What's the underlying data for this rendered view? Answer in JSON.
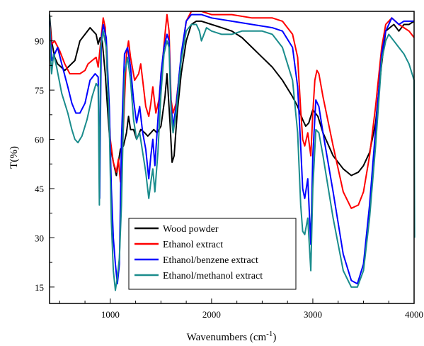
{
  "chart_data": {
    "type": "line",
    "title": "",
    "xlabel": "Wavenumbers (cm",
    "xlabel_sup": "-1",
    "xlabel_close": ")",
    "ylabel": "T(%)",
    "xlim": [
      400,
      4000
    ],
    "ylim": [
      10,
      99
    ],
    "x_ticks": [
      1000,
      2000,
      3000,
      4000
    ],
    "y_ticks": [
      15,
      30,
      45,
      60,
      75,
      90
    ],
    "grid": false,
    "legend_position": "bottom-left",
    "series": [
      {
        "name": "Wood powder",
        "color": "#000000",
        "points": [
          [
            400,
            98
          ],
          [
            420,
            90
          ],
          [
            450,
            85
          ],
          [
            480,
            83
          ],
          [
            550,
            81
          ],
          [
            650,
            84
          ],
          [
            700,
            90
          ],
          [
            750,
            92
          ],
          [
            800,
            94
          ],
          [
            830,
            93
          ],
          [
            860,
            92
          ],
          [
            880,
            89
          ],
          [
            900,
            91
          ],
          [
            920,
            90
          ],
          [
            950,
            80
          ],
          [
            980,
            66
          ],
          [
            1000,
            58
          ],
          [
            1030,
            53
          ],
          [
            1060,
            49
          ],
          [
            1100,
            57
          ],
          [
            1130,
            58
          ],
          [
            1160,
            62
          ],
          [
            1180,
            67
          ],
          [
            1200,
            63
          ],
          [
            1230,
            63
          ],
          [
            1260,
            60
          ],
          [
            1300,
            63
          ],
          [
            1340,
            62
          ],
          [
            1370,
            61
          ],
          [
            1400,
            62
          ],
          [
            1430,
            63
          ],
          [
            1460,
            62
          ],
          [
            1500,
            64
          ],
          [
            1540,
            73
          ],
          [
            1560,
            80
          ],
          [
            1590,
            65
          ],
          [
            1610,
            53
          ],
          [
            1630,
            55
          ],
          [
            1660,
            68
          ],
          [
            1700,
            80
          ],
          [
            1750,
            90
          ],
          [
            1800,
            95
          ],
          [
            1850,
            96
          ],
          [
            1900,
            96
          ],
          [
            2000,
            95
          ],
          [
            2100,
            94
          ],
          [
            2200,
            93
          ],
          [
            2300,
            91
          ],
          [
            2400,
            88
          ],
          [
            2500,
            85
          ],
          [
            2600,
            82
          ],
          [
            2700,
            78
          ],
          [
            2800,
            73
          ],
          [
            2850,
            70
          ],
          [
            2900,
            66
          ],
          [
            2930,
            64
          ],
          [
            2960,
            65
          ],
          [
            3000,
            69
          ],
          [
            3050,
            67
          ],
          [
            3100,
            62
          ],
          [
            3200,
            55
          ],
          [
            3300,
            51
          ],
          [
            3380,
            49
          ],
          [
            3450,
            50
          ],
          [
            3500,
            52
          ],
          [
            3560,
            56
          ],
          [
            3620,
            65
          ],
          [
            3680,
            83
          ],
          [
            3720,
            93
          ],
          [
            3760,
            94
          ],
          [
            3800,
            95
          ],
          [
            3850,
            93
          ],
          [
            3900,
            95
          ],
          [
            3950,
            95
          ],
          [
            4000,
            96
          ]
        ]
      },
      {
        "name": "Ethanol extract",
        "color": "#ff0000",
        "points": [
          [
            400,
            96
          ],
          [
            420,
            89
          ],
          [
            450,
            90
          ],
          [
            500,
            87
          ],
          [
            550,
            83
          ],
          [
            600,
            80
          ],
          [
            650,
            80
          ],
          [
            700,
            80
          ],
          [
            750,
            81
          ],
          [
            780,
            83
          ],
          [
            820,
            84
          ],
          [
            860,
            85
          ],
          [
            880,
            82
          ],
          [
            900,
            88
          ],
          [
            930,
            97
          ],
          [
            950,
            94
          ],
          [
            980,
            73
          ],
          [
            1000,
            60
          ],
          [
            1030,
            53
          ],
          [
            1060,
            50
          ],
          [
            1080,
            54
          ],
          [
            1100,
            47
          ],
          [
            1130,
            64
          ],
          [
            1160,
            86
          ],
          [
            1180,
            90
          ],
          [
            1200,
            85
          ],
          [
            1240,
            78
          ],
          [
            1280,
            80
          ],
          [
            1300,
            83
          ],
          [
            1320,
            78
          ],
          [
            1350,
            70
          ],
          [
            1380,
            67
          ],
          [
            1400,
            71
          ],
          [
            1420,
            76
          ],
          [
            1450,
            68
          ],
          [
            1480,
            72
          ],
          [
            1510,
            82
          ],
          [
            1540,
            92
          ],
          [
            1560,
            98
          ],
          [
            1580,
            93
          ],
          [
            1600,
            72
          ],
          [
            1620,
            68
          ],
          [
            1650,
            71
          ],
          [
            1700,
            85
          ],
          [
            1750,
            96
          ],
          [
            1800,
            99
          ],
          [
            1900,
            99
          ],
          [
            2000,
            98
          ],
          [
            2200,
            98
          ],
          [
            2400,
            97
          ],
          [
            2600,
            97
          ],
          [
            2700,
            96
          ],
          [
            2800,
            92
          ],
          [
            2850,
            85
          ],
          [
            2880,
            69
          ],
          [
            2900,
            60
          ],
          [
            2920,
            58
          ],
          [
            2950,
            62
          ],
          [
            2980,
            55
          ],
          [
            3000,
            68
          ],
          [
            3020,
            78
          ],
          [
            3040,
            81
          ],
          [
            3060,
            80
          ],
          [
            3100,
            73
          ],
          [
            3200,
            58
          ],
          [
            3300,
            44
          ],
          [
            3380,
            39
          ],
          [
            3450,
            40
          ],
          [
            3500,
            44
          ],
          [
            3560,
            55
          ],
          [
            3620,
            70
          ],
          [
            3680,
            88
          ],
          [
            3720,
            95
          ],
          [
            3780,
            97
          ],
          [
            3850,
            95
          ],
          [
            3900,
            94
          ],
          [
            3950,
            93
          ],
          [
            4000,
            91
          ]
        ]
      },
      {
        "name": "Ethanol/benzene extract",
        "color": "#0000ff",
        "points": [
          [
            400,
            96
          ],
          [
            420,
            84
          ],
          [
            450,
            86
          ],
          [
            480,
            88
          ],
          [
            520,
            83
          ],
          [
            580,
            76
          ],
          [
            620,
            71
          ],
          [
            660,
            68
          ],
          [
            700,
            68
          ],
          [
            750,
            71
          ],
          [
            800,
            78
          ],
          [
            850,
            80
          ],
          [
            880,
            79
          ],
          [
            895,
            42
          ],
          [
            910,
            90
          ],
          [
            930,
            95
          ],
          [
            960,
            91
          ],
          [
            990,
            70
          ],
          [
            1010,
            45
          ],
          [
            1030,
            30
          ],
          [
            1050,
            22
          ],
          [
            1070,
            16
          ],
          [
            1090,
            22
          ],
          [
            1110,
            60
          ],
          [
            1140,
            86
          ],
          [
            1170,
            88
          ],
          [
            1200,
            82
          ],
          [
            1230,
            72
          ],
          [
            1260,
            65
          ],
          [
            1290,
            70
          ],
          [
            1320,
            62
          ],
          [
            1350,
            57
          ],
          [
            1380,
            48
          ],
          [
            1400,
            55
          ],
          [
            1420,
            60
          ],
          [
            1440,
            52
          ],
          [
            1470,
            66
          ],
          [
            1500,
            80
          ],
          [
            1530,
            88
          ],
          [
            1560,
            92
          ],
          [
            1580,
            90
          ],
          [
            1600,
            70
          ],
          [
            1620,
            64
          ],
          [
            1650,
            70
          ],
          [
            1700,
            86
          ],
          [
            1750,
            96
          ],
          [
            1800,
            98
          ],
          [
            1900,
            98
          ],
          [
            2000,
            97
          ],
          [
            2200,
            96
          ],
          [
            2400,
            95
          ],
          [
            2600,
            94
          ],
          [
            2700,
            93
          ],
          [
            2800,
            88
          ],
          [
            2850,
            76
          ],
          [
            2880,
            58
          ],
          [
            2900,
            45
          ],
          [
            2920,
            42
          ],
          [
            2950,
            48
          ],
          [
            2980,
            28
          ],
          [
            3000,
            55
          ],
          [
            3030,
            72
          ],
          [
            3060,
            70
          ],
          [
            3100,
            62
          ],
          [
            3200,
            44
          ],
          [
            3300,
            25
          ],
          [
            3380,
            17
          ],
          [
            3440,
            16
          ],
          [
            3500,
            22
          ],
          [
            3560,
            40
          ],
          [
            3620,
            63
          ],
          [
            3680,
            86
          ],
          [
            3720,
            93
          ],
          [
            3780,
            97
          ],
          [
            3850,
            95
          ],
          [
            3900,
            96
          ],
          [
            3950,
            96
          ],
          [
            4000,
            96
          ]
        ]
      },
      {
        "name": "Ethanol/methanol extract",
        "color": "#1a8c8c",
        "points": [
          [
            400,
            98
          ],
          [
            410,
            85
          ],
          [
            420,
            80
          ],
          [
            440,
            86
          ],
          [
            470,
            82
          ],
          [
            520,
            74
          ],
          [
            580,
            68
          ],
          [
            620,
            63
          ],
          [
            650,
            60
          ],
          [
            680,
            59
          ],
          [
            720,
            61
          ],
          [
            770,
            66
          ],
          [
            820,
            73
          ],
          [
            860,
            77
          ],
          [
            880,
            76
          ],
          [
            892,
            40
          ],
          [
            905,
            88
          ],
          [
            930,
            93
          ],
          [
            960,
            88
          ],
          [
            990,
            64
          ],
          [
            1010,
            35
          ],
          [
            1030,
            20
          ],
          [
            1050,
            14
          ],
          [
            1070,
            18
          ],
          [
            1090,
            24
          ],
          [
            1110,
            40
          ],
          [
            1140,
            80
          ],
          [
            1170,
            85
          ],
          [
            1200,
            78
          ],
          [
            1230,
            66
          ],
          [
            1260,
            60
          ],
          [
            1290,
            62
          ],
          [
            1320,
            56
          ],
          [
            1350,
            50
          ],
          [
            1380,
            42
          ],
          [
            1400,
            47
          ],
          [
            1420,
            51
          ],
          [
            1440,
            44
          ],
          [
            1470,
            56
          ],
          [
            1500,
            74
          ],
          [
            1530,
            86
          ],
          [
            1560,
            90
          ],
          [
            1580,
            88
          ],
          [
            1600,
            68
          ],
          [
            1620,
            62
          ],
          [
            1650,
            68
          ],
          [
            1700,
            84
          ],
          [
            1750,
            93
          ],
          [
            1800,
            95
          ],
          [
            1850,
            95
          ],
          [
            1880,
            93
          ],
          [
            1900,
            90
          ],
          [
            1950,
            94
          ],
          [
            2000,
            93
          ],
          [
            2100,
            92
          ],
          [
            2200,
            92
          ],
          [
            2300,
            93
          ],
          [
            2400,
            93
          ],
          [
            2500,
            93
          ],
          [
            2600,
            92
          ],
          [
            2700,
            88
          ],
          [
            2800,
            78
          ],
          [
            2850,
            62
          ],
          [
            2880,
            40
          ],
          [
            2900,
            32
          ],
          [
            2920,
            31
          ],
          [
            2950,
            36
          ],
          [
            2980,
            20
          ],
          [
            3000,
            45
          ],
          [
            3030,
            63
          ],
          [
            3060,
            62
          ],
          [
            3100,
            55
          ],
          [
            3200,
            36
          ],
          [
            3300,
            20
          ],
          [
            3380,
            15
          ],
          [
            3440,
            15
          ],
          [
            3500,
            20
          ],
          [
            3560,
            36
          ],
          [
            3620,
            58
          ],
          [
            3680,
            84
          ],
          [
            3720,
            90
          ],
          [
            3750,
            92
          ],
          [
            3800,
            90
          ],
          [
            3850,
            88
          ],
          [
            3900,
            86
          ],
          [
            3950,
            83
          ],
          [
            4000,
            78
          ],
          [
            4005,
            30
          ]
        ]
      }
    ]
  }
}
